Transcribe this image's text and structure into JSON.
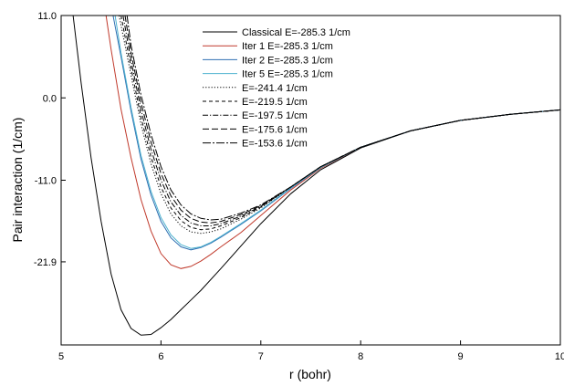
{
  "chart_data": {
    "type": "line",
    "title": "",
    "xlabel": "r (bohr)",
    "ylabel": "Pair interaction (1/cm)",
    "xlim": [
      5,
      10
    ],
    "ylim": [
      -33,
      11
    ],
    "x_ticks": [
      5,
      6,
      7,
      8,
      9,
      10
    ],
    "x_tick_labels": [
      "5",
      "6",
      "7",
      "8",
      "9",
      "10"
    ],
    "y_ticks": [
      11.0,
      0.0,
      -11.0,
      -21.9
    ],
    "y_tick_labels": [
      "11.0",
      "0.0",
      "-11.0",
      "-21.9"
    ],
    "grid": false,
    "legend_position": "top-center",
    "series": [
      {
        "name": "Classical E=-285.3 1/cm",
        "color": "#000000",
        "dash": "",
        "x": [
          5.12,
          5.2,
          5.3,
          5.4,
          5.5,
          5.6,
          5.7,
          5.8,
          5.9,
          6.0,
          6.1,
          6.2,
          6.3,
          6.4,
          6.6,
          6.8,
          7.0,
          7.3,
          7.6,
          8.0,
          8.5,
          9.0,
          9.5,
          10.0
        ],
        "y": [
          11.0,
          2.0,
          -8.0,
          -16.5,
          -23.5,
          -28.3,
          -30.8,
          -31.7,
          -31.6,
          -30.7,
          -29.6,
          -28.3,
          -27.0,
          -25.7,
          -22.8,
          -19.8,
          -16.8,
          -12.8,
          -9.6,
          -6.7,
          -4.4,
          -3.0,
          -2.2,
          -1.6
        ]
      },
      {
        "name": "Iter 1 E=-285.3 1/cm",
        "color": "#c0392b",
        "dash": "",
        "x": [
          5.45,
          5.5,
          5.6,
          5.7,
          5.8,
          5.9,
          6.0,
          6.1,
          6.2,
          6.3,
          6.4,
          6.5,
          6.6,
          6.8,
          7.0,
          7.3,
          7.6,
          8.0,
          8.5,
          9.0,
          9.5,
          10.0
        ],
        "y": [
          11.0,
          6.5,
          -1.5,
          -8.0,
          -13.6,
          -17.8,
          -20.8,
          -22.3,
          -22.8,
          -22.5,
          -21.8,
          -20.9,
          -19.9,
          -18.0,
          -15.7,
          -12.3,
          -9.4,
          -6.6,
          -4.4,
          -3.0,
          -2.2,
          -1.6
        ]
      },
      {
        "name": "Iter 2 E=-285.3 1/cm",
        "color": "#2f6fb2",
        "dash": "",
        "x": [
          5.52,
          5.6,
          5.7,
          5.8,
          5.9,
          6.0,
          6.1,
          6.2,
          6.3,
          6.4,
          6.5,
          6.6,
          6.8,
          7.0,
          7.3,
          7.6,
          8.0,
          8.5,
          9.0,
          9.5,
          10.0
        ],
        "y": [
          11.0,
          5.5,
          -1.8,
          -8.2,
          -13.0,
          -16.5,
          -18.7,
          -19.9,
          -20.3,
          -20.0,
          -19.4,
          -18.6,
          -16.9,
          -15.1,
          -12.1,
          -9.3,
          -6.6,
          -4.4,
          -3.0,
          -2.2,
          -1.6
        ]
      },
      {
        "name": "Iter 5 E=-285.3 1/cm",
        "color": "#4fb3cf",
        "dash": "",
        "x": [
          5.54,
          5.6,
          5.7,
          5.8,
          5.9,
          6.0,
          6.1,
          6.2,
          6.3,
          6.4,
          6.5,
          6.6,
          6.8,
          7.0,
          7.3,
          7.6,
          8.0,
          8.5,
          9.0,
          9.5,
          10.0
        ],
        "y": [
          11.0,
          6.0,
          -1.3,
          -7.7,
          -12.5,
          -16.0,
          -18.3,
          -19.6,
          -20.1,
          -19.9,
          -19.3,
          -18.5,
          -16.8,
          -15.0,
          -12.0,
          -9.3,
          -6.6,
          -4.4,
          -3.0,
          -2.2,
          -1.6
        ]
      },
      {
        "name": "E=-241.4 1/cm",
        "color": "#000000",
        "dash": "1.2 2",
        "x": [
          5.58,
          5.7,
          5.8,
          5.9,
          6.0,
          6.1,
          6.2,
          6.3,
          6.4,
          6.5,
          6.6,
          6.8,
          7.0,
          7.3,
          7.6,
          8.0,
          8.5,
          9.0,
          9.5,
          10.0
        ],
        "y": [
          11.0,
          3.0,
          -3.5,
          -8.8,
          -12.8,
          -15.5,
          -17.1,
          -17.9,
          -18.1,
          -17.9,
          -17.5,
          -16.2,
          -14.7,
          -11.9,
          -9.2,
          -6.6,
          -4.4,
          -3.0,
          -2.2,
          -1.6
        ]
      },
      {
        "name": "E=-219.5 1/cm",
        "color": "#000000",
        "dash": "4 3",
        "x": [
          5.6,
          5.7,
          5.8,
          5.9,
          6.0,
          6.1,
          6.2,
          6.3,
          6.4,
          6.5,
          6.6,
          6.8,
          7.0,
          7.3,
          7.6,
          8.0,
          8.5,
          9.0,
          9.5,
          10.0
        ],
        "y": [
          11.0,
          4.0,
          -2.6,
          -7.9,
          -11.9,
          -14.7,
          -16.4,
          -17.3,
          -17.6,
          -17.5,
          -17.1,
          -16.0,
          -14.6,
          -11.9,
          -9.2,
          -6.6,
          -4.4,
          -3.0,
          -2.2,
          -1.6
        ]
      },
      {
        "name": "E=-197.5 1/cm",
        "color": "#000000",
        "dash": "6 2 1.2 2",
        "x": [
          5.62,
          5.7,
          5.8,
          5.9,
          6.0,
          6.1,
          6.2,
          6.3,
          6.4,
          6.5,
          6.6,
          6.8,
          7.0,
          7.3,
          7.6,
          8.0,
          8.5,
          9.0,
          9.5,
          10.0
        ],
        "y": [
          11.0,
          5.0,
          -1.6,
          -6.9,
          -11.0,
          -13.9,
          -15.7,
          -16.7,
          -17.1,
          -17.1,
          -16.8,
          -15.8,
          -14.5,
          -11.9,
          -9.2,
          -6.6,
          -4.4,
          -3.0,
          -2.2,
          -1.6
        ]
      },
      {
        "name": "E=-175.6 1/cm",
        "color": "#000000",
        "dash": "7 3",
        "x": [
          5.64,
          5.7,
          5.8,
          5.9,
          6.0,
          6.1,
          6.2,
          6.3,
          6.4,
          6.5,
          6.6,
          6.8,
          7.0,
          7.3,
          7.6,
          8.0,
          8.5,
          9.0,
          9.5,
          10.0
        ],
        "y": [
          11.0,
          6.0,
          -0.6,
          -5.9,
          -10.1,
          -13.1,
          -15.0,
          -16.1,
          -16.6,
          -16.7,
          -16.5,
          -15.6,
          -14.4,
          -11.9,
          -9.2,
          -6.6,
          -4.4,
          -3.0,
          -2.2,
          -1.6
        ]
      },
      {
        "name": "E=-153.6 1/cm",
        "color": "#000000",
        "dash": "9 2 2 2",
        "x": [
          5.66,
          5.7,
          5.8,
          5.9,
          6.0,
          6.1,
          6.2,
          6.3,
          6.4,
          6.5,
          6.6,
          6.8,
          7.0,
          7.3,
          7.6,
          8.0,
          8.5,
          9.0,
          9.5,
          10.0
        ],
        "y": [
          11.0,
          7.0,
          0.4,
          -4.9,
          -9.2,
          -12.3,
          -14.3,
          -15.5,
          -16.1,
          -16.3,
          -16.2,
          -15.4,
          -14.3,
          -11.9,
          -9.2,
          -6.6,
          -4.4,
          -3.0,
          -2.2,
          -1.6
        ]
      }
    ]
  }
}
